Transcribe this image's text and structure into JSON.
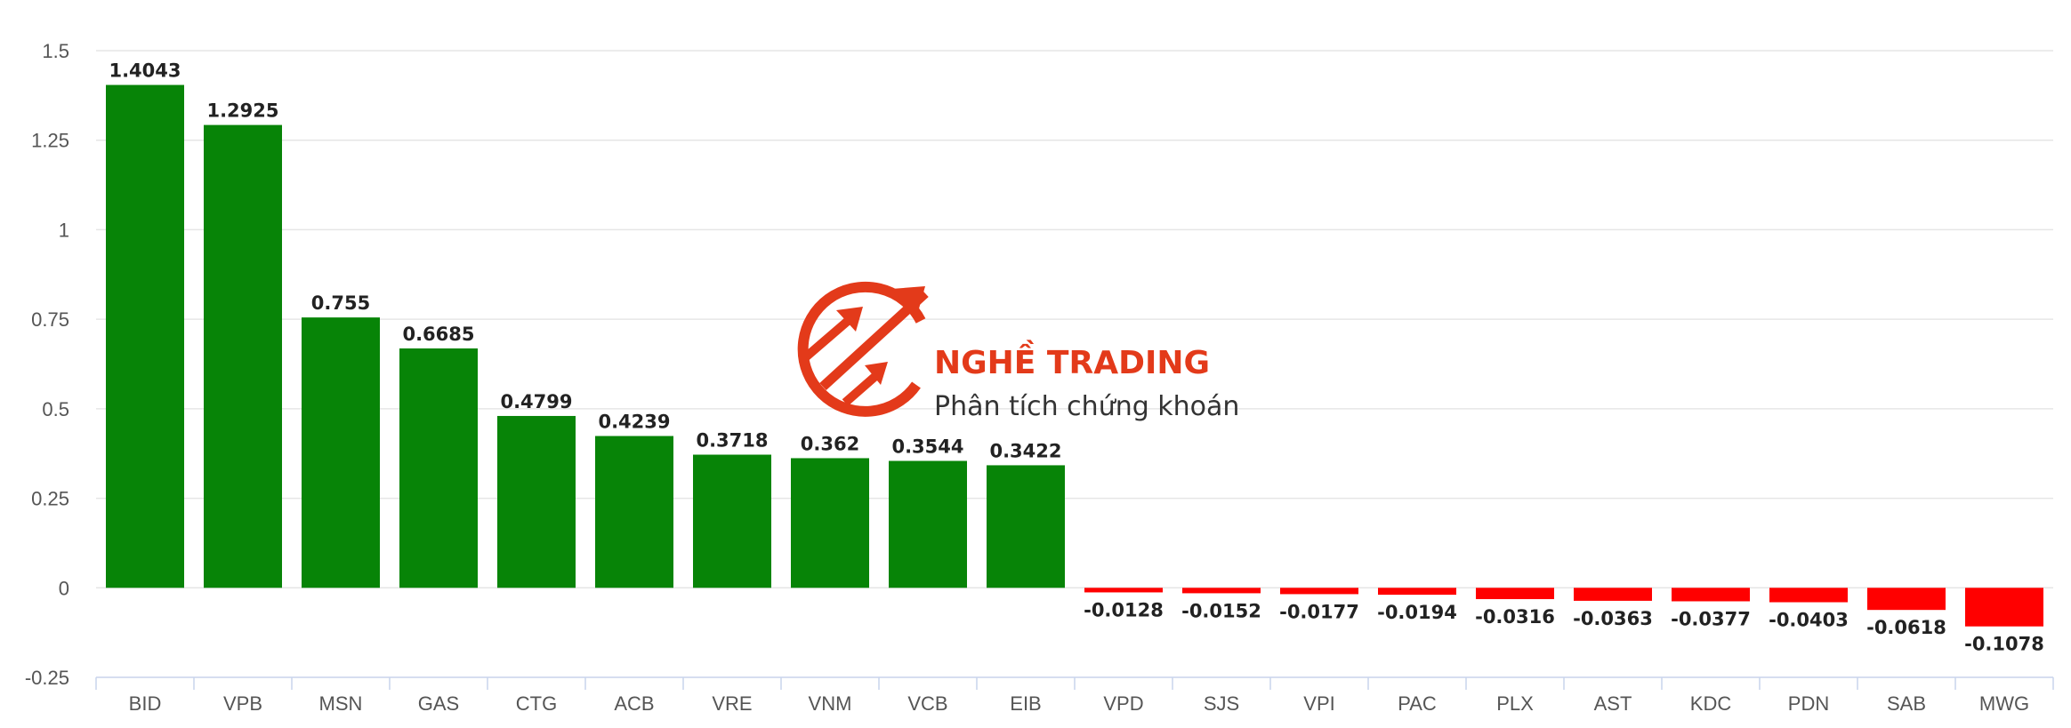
{
  "chart_data": {
    "type": "bar",
    "categories": [
      "BID",
      "VPB",
      "MSN",
      "GAS",
      "CTG",
      "ACB",
      "VRE",
      "VNM",
      "VCB",
      "EIB",
      "VPD",
      "SJS",
      "VPI",
      "PAC",
      "PLX",
      "AST",
      "KDC",
      "PDN",
      "SAB",
      "MWG"
    ],
    "values": [
      1.4043,
      1.2925,
      0.755,
      0.6685,
      0.4799,
      0.4239,
      0.3718,
      0.362,
      0.3544,
      0.3422,
      -0.0128,
      -0.0152,
      -0.0177,
      -0.0194,
      -0.0316,
      -0.0363,
      -0.0377,
      -0.0403,
      -0.0618,
      -0.1078
    ],
    "value_labels": [
      "1.4043",
      "1.2925",
      "0.755",
      "0.6685",
      "0.4799",
      "0.4239",
      "0.3718",
      "0.362",
      "0.3544",
      "0.3422",
      "-0.0128",
      "-0.0152",
      "-0.0177",
      "-0.0194",
      "-0.0316",
      "-0.0363",
      "-0.0377",
      "-0.0403",
      "-0.0618",
      "-0.1078"
    ],
    "ylim": [
      -0.25,
      1.5
    ],
    "yticks": [
      -0.25,
      0,
      0.25,
      0.5,
      0.75,
      1,
      1.25,
      1.5
    ],
    "ytick_labels": [
      "-0.25",
      "0",
      "0.25",
      "0.5",
      "0.75",
      "1",
      "1.25",
      "1.5"
    ],
    "grid": true,
    "positive_color": "#078407",
    "negative_color": "#ff0000",
    "title": "",
    "xlabel": "",
    "ylabel": ""
  },
  "watermark": {
    "title": "NGHỀ TRADING",
    "subtitle": "Phân tích chứng khoán",
    "color": "#e33a1a"
  }
}
